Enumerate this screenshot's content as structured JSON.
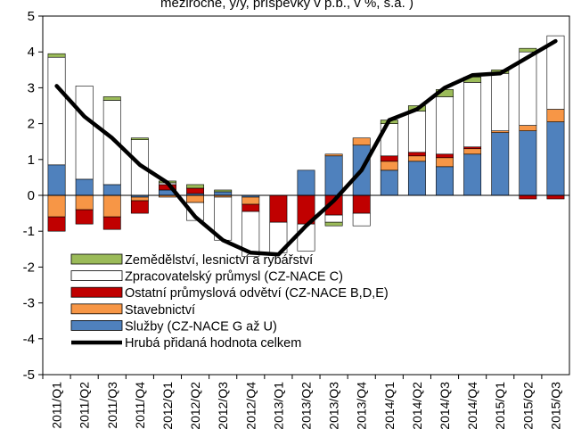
{
  "chart_data": {
    "type": "bar",
    "title": "meziročně, y/y, příspěvky v p.b., v %, s.a. )",
    "xlabel": "",
    "ylabel": "",
    "ylim": [
      -5,
      5
    ],
    "yticks": [
      "5",
      "4",
      "3",
      "2",
      "1",
      "0",
      "-1",
      "-2",
      "-3",
      "-4",
      "-5"
    ],
    "grid": false,
    "legend_position": "bottom-left",
    "categories": [
      "2011/Q1",
      "2011/Q2",
      "2011/Q3",
      "2011/Q4",
      "2012/Q1",
      "2012/Q2",
      "2012/Q3",
      "2012/Q4",
      "2013/Q1",
      "2013/Q2",
      "2013/Q3",
      "2013/Q4",
      "2014/Q1",
      "2014/Q2",
      "2014/Q3",
      "2014/Q4",
      "2015/Q1",
      "2015/Q2",
      "2015/Q3"
    ],
    "series": [
      {
        "name": "Zemědělství, lesnictví a rybářství",
        "type": "bar",
        "color": "#9bbb59",
        "values": [
          0.1,
          0.0,
          0.1,
          0.05,
          0.05,
          0.1,
          0.05,
          0.0,
          0.0,
          0.0,
          -0.1,
          0.0,
          0.1,
          0.15,
          0.2,
          0.15,
          0.1,
          0.1,
          0.0
        ]
      },
      {
        "name": "Zpracovatelský průmysl (CZ-NACE C)",
        "type": "bar",
        "color": "#ffffff",
        "values": [
          3.0,
          2.6,
          2.35,
          1.55,
          0.05,
          -0.5,
          -1.2,
          -1.25,
          -0.85,
          -0.75,
          -0.2,
          -0.35,
          0.9,
          1.15,
          1.6,
          1.8,
          1.6,
          2.05,
          2.05
        ]
      },
      {
        "name": "Ostatní průmyslová odvětví (CZ-NACE B,D,E)",
        "type": "bar",
        "color": "#c00000",
        "values": [
          -0.4,
          -0.4,
          -0.35,
          -0.35,
          0.15,
          0.15,
          0.0,
          -0.2,
          -0.75,
          -0.8,
          -0.55,
          -0.5,
          0.15,
          0.1,
          0.1,
          0.05,
          0.0,
          -0.1,
          -0.1
        ]
      },
      {
        "name": "Stavebnictví",
        "type": "bar",
        "color": "#f79646",
        "values": [
          -0.6,
          -0.4,
          -0.6,
          -0.1,
          -0.05,
          -0.2,
          -0.05,
          -0.2,
          0.0,
          0.0,
          0.05,
          0.2,
          0.25,
          0.15,
          0.25,
          0.15,
          0.05,
          0.15,
          0.35
        ]
      },
      {
        "name": "Služby (CZ-NACE G až U)",
        "type": "bar",
        "color": "#4f81bd",
        "values": [
          0.85,
          0.45,
          0.3,
          -0.05,
          0.15,
          0.05,
          0.1,
          -0.05,
          0.0,
          0.7,
          1.1,
          1.4,
          0.7,
          0.95,
          0.8,
          1.15,
          1.75,
          1.8,
          2.05
        ]
      },
      {
        "name": "Hrubá přidaná hodnota celkem",
        "type": "line",
        "color": "#000000",
        "values": [
          3.05,
          2.2,
          1.6,
          0.85,
          0.35,
          -0.6,
          -1.25,
          -1.6,
          -1.65,
          -0.85,
          -0.15,
          0.7,
          2.1,
          2.4,
          3.0,
          3.35,
          3.4,
          3.85,
          4.3
        ]
      }
    ]
  }
}
